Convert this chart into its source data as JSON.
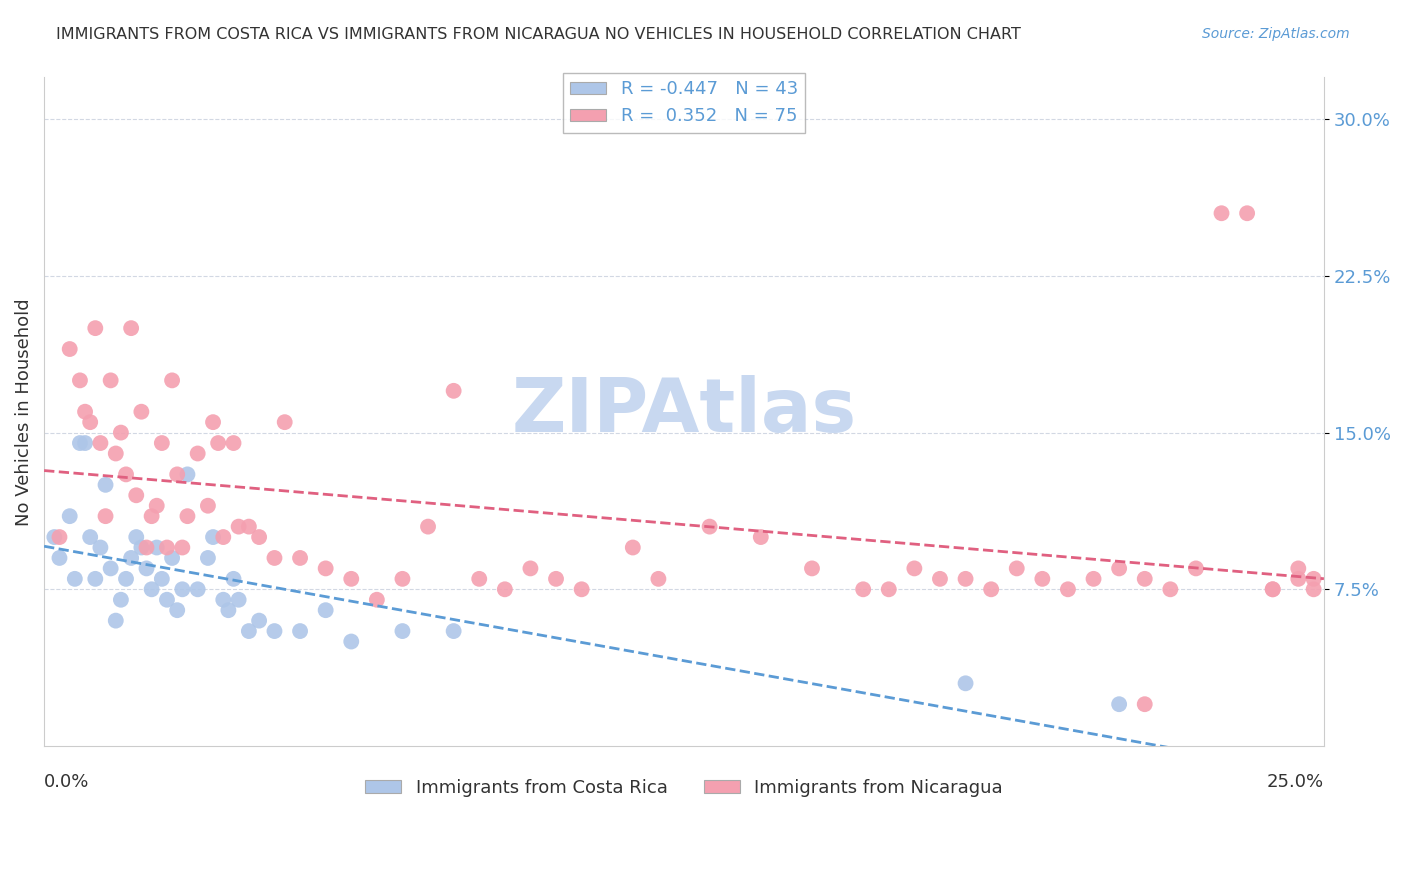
{
  "title": "IMMIGRANTS FROM COSTA RICA VS IMMIGRANTS FROM NICARAGUA NO VEHICLES IN HOUSEHOLD CORRELATION CHART",
  "source": "Source: ZipAtlas.com",
  "ylabel": "No Vehicles in Household",
  "ytick_labels": [
    "7.5%",
    "15.0%",
    "22.5%",
    "30.0%"
  ],
  "ytick_values": [
    0.075,
    0.15,
    0.225,
    0.3
  ],
  "xlim": [
    0.0,
    0.25
  ],
  "ylim": [
    0.0,
    0.32
  ],
  "costa_rica_R": -0.447,
  "costa_rica_N": 43,
  "nicaragua_R": 0.352,
  "nicaragua_N": 75,
  "blue_color": "#aec6e8",
  "pink_color": "#f4a0b0",
  "blue_line_color": "#5b9bd5",
  "pink_line_color": "#e06080",
  "watermark_color": "#c8d8f0",
  "background_color": "#ffffff",
  "costa_rica_x": [
    0.002,
    0.003,
    0.005,
    0.006,
    0.007,
    0.008,
    0.009,
    0.01,
    0.011,
    0.012,
    0.013,
    0.014,
    0.015,
    0.016,
    0.017,
    0.018,
    0.019,
    0.02,
    0.021,
    0.022,
    0.023,
    0.024,
    0.025,
    0.026,
    0.027,
    0.028,
    0.03,
    0.032,
    0.033,
    0.035,
    0.036,
    0.037,
    0.038,
    0.04,
    0.042,
    0.045,
    0.05,
    0.055,
    0.06,
    0.07,
    0.08,
    0.18,
    0.21
  ],
  "costa_rica_y": [
    0.1,
    0.09,
    0.11,
    0.08,
    0.145,
    0.145,
    0.1,
    0.08,
    0.095,
    0.125,
    0.085,
    0.06,
    0.07,
    0.08,
    0.09,
    0.1,
    0.095,
    0.085,
    0.075,
    0.095,
    0.08,
    0.07,
    0.09,
    0.065,
    0.075,
    0.13,
    0.075,
    0.09,
    0.1,
    0.07,
    0.065,
    0.08,
    0.07,
    0.055,
    0.06,
    0.055,
    0.055,
    0.065,
    0.05,
    0.055,
    0.055,
    0.03,
    0.02
  ],
  "nicaragua_x": [
    0.003,
    0.005,
    0.007,
    0.008,
    0.009,
    0.01,
    0.011,
    0.012,
    0.013,
    0.014,
    0.015,
    0.016,
    0.017,
    0.018,
    0.019,
    0.02,
    0.021,
    0.022,
    0.023,
    0.024,
    0.025,
    0.026,
    0.027,
    0.028,
    0.03,
    0.032,
    0.033,
    0.034,
    0.035,
    0.037,
    0.038,
    0.04,
    0.042,
    0.045,
    0.047,
    0.05,
    0.055,
    0.06,
    0.065,
    0.07,
    0.075,
    0.08,
    0.085,
    0.09,
    0.095,
    0.1,
    0.105,
    0.115,
    0.12,
    0.13,
    0.14,
    0.15,
    0.16,
    0.165,
    0.17,
    0.175,
    0.18,
    0.185,
    0.19,
    0.195,
    0.2,
    0.205,
    0.21,
    0.215,
    0.22,
    0.225,
    0.23,
    0.235,
    0.24,
    0.245,
    0.248,
    0.215,
    0.24,
    0.245,
    0.248
  ],
  "nicaragua_y": [
    0.1,
    0.19,
    0.175,
    0.16,
    0.155,
    0.2,
    0.145,
    0.11,
    0.175,
    0.14,
    0.15,
    0.13,
    0.2,
    0.12,
    0.16,
    0.095,
    0.11,
    0.115,
    0.145,
    0.095,
    0.175,
    0.13,
    0.095,
    0.11,
    0.14,
    0.115,
    0.155,
    0.145,
    0.1,
    0.145,
    0.105,
    0.105,
    0.1,
    0.09,
    0.155,
    0.09,
    0.085,
    0.08,
    0.07,
    0.08,
    0.105,
    0.17,
    0.08,
    0.075,
    0.085,
    0.08,
    0.075,
    0.095,
    0.08,
    0.105,
    0.1,
    0.085,
    0.075,
    0.075,
    0.085,
    0.08,
    0.08,
    0.075,
    0.085,
    0.08,
    0.075,
    0.08,
    0.085,
    0.02,
    0.075,
    0.085,
    0.255,
    0.255,
    0.075,
    0.085,
    0.08,
    0.08,
    0.075,
    0.08,
    0.075
  ]
}
